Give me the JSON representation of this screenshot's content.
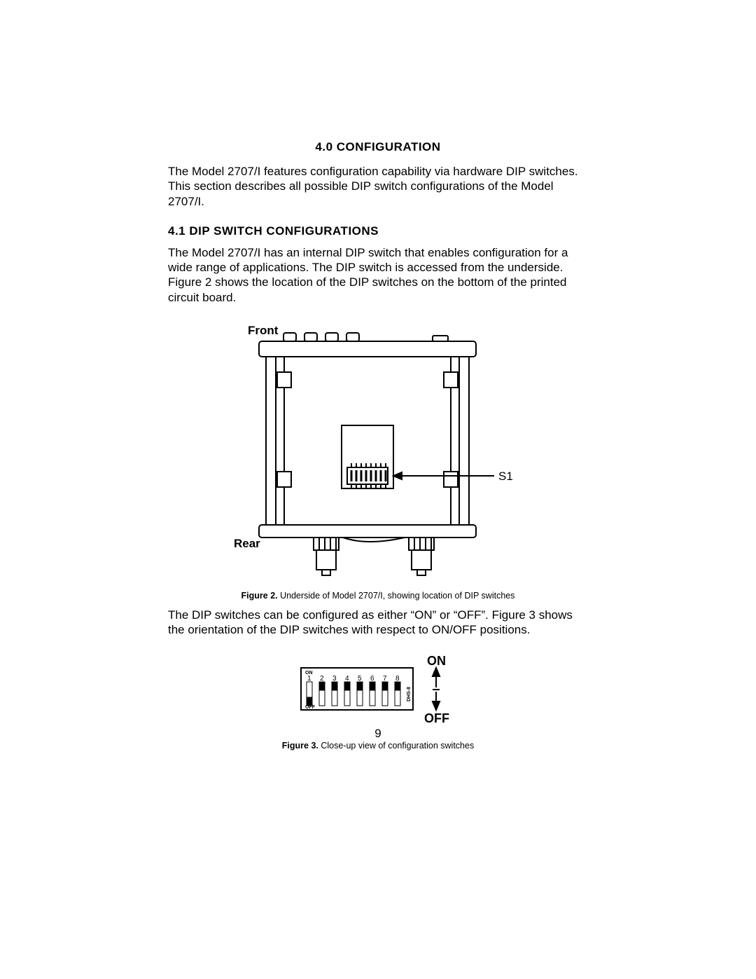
{
  "section": {
    "title": "4.0  CONFIGURATION",
    "intro": "The Model 2707/I features configuration capability via hardware DIP switches. This section describes all possible DIP switch configurations of the Model 2707/I."
  },
  "sub": {
    "title": "4.1  DIP SWITCH CONFIGURATIONS",
    "para1": "The Model 2707/I has an internal DIP switch that enables configuration for a wide range of applications. The DIP switch is accessed from the underside. Figure 2 shows the location of the DIP switches on the bottom of the printed circuit board.",
    "para2": "The DIP switches can be configured as either “ON” or “OFF”. Figure 3 shows the orientation of the DIP switches with respect to ON/OFF positions."
  },
  "fig2": {
    "label_front": "Front",
    "label_rear": "Rear",
    "label_s1": "S1",
    "caption_bold": "Figure 2.",
    "caption_rest": " Underside of Model 2707/I, showing location of DIP switches",
    "colors": {
      "stroke": "#000000",
      "fill": "#ffffff"
    }
  },
  "fig3": {
    "on_label": "ON",
    "off_label": "OFF",
    "inner_on": "ON",
    "inner_off": "OFF",
    "side_text": "DHS-8",
    "numbers": [
      "1",
      "2",
      "3",
      "4",
      "5",
      "6",
      "7",
      "8"
    ],
    "caption_bold": "Figure 3.",
    "caption_rest": " Close-up view of configuration switches",
    "colors": {
      "stroke": "#000000",
      "fill": "#ffffff"
    }
  },
  "page_number": "9"
}
